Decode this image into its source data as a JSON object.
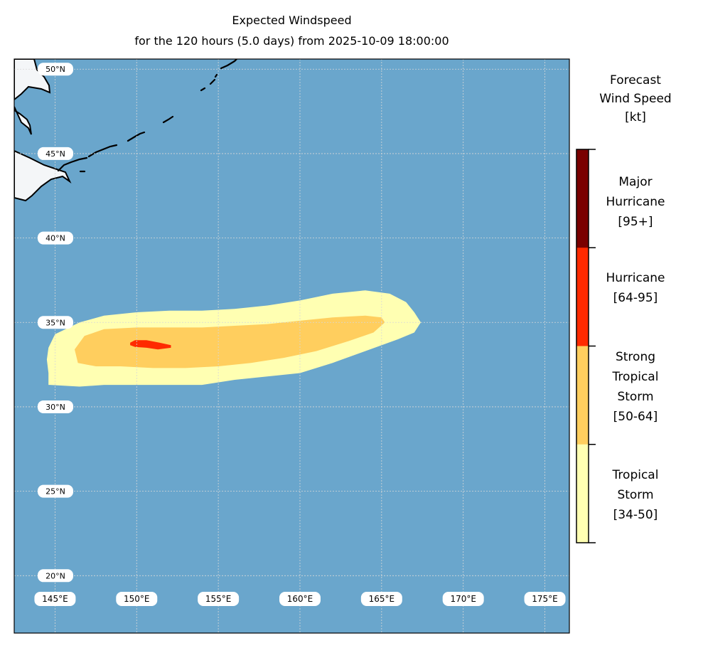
{
  "chart": {
    "title": "Expected Windspeed",
    "subtitle": "for the 120 hours (5.0 days) from 2025-10-09 18:00:00"
  },
  "map": {
    "extent": {
      "lon": [
        142.5,
        176.5
      ],
      "lat": [
        16.6,
        50.6
      ]
    },
    "lon_ticks": [
      145,
      150,
      155,
      160,
      165,
      170,
      175
    ],
    "lat_ticks": [
      20,
      25,
      30,
      35,
      40,
      45,
      50
    ],
    "lon_tick_labels": [
      "145°E",
      "150°E",
      "155°E",
      "160°E",
      "165°E",
      "170°E",
      "175°E"
    ],
    "lat_tick_labels": [
      "20°N",
      "25°N",
      "30°N",
      "35°N",
      "40°N",
      "45°N",
      "50°N"
    ],
    "ocean_color": "#6aa6cc",
    "land_color": "#f4f6f8",
    "gridlines": true
  },
  "colorbar": {
    "title_lines": [
      "Forecast",
      "Wind Speed",
      "[kt]"
    ],
    "categories": [
      {
        "lines": [
          "Major",
          "Hurricane",
          "[95+]"
        ],
        "color": "#7a0000"
      },
      {
        "lines": [
          "Hurricane",
          "[64-95]"
        ],
        "color": "#ff2a00"
      },
      {
        "lines": [
          "Strong",
          "Tropical",
          "Storm",
          "[50-64]"
        ],
        "color": "#ffce5e"
      },
      {
        "lines": [
          "Tropical",
          "Storm",
          "[34-50]"
        ],
        "color": "#ffffb2"
      }
    ]
  },
  "swaths": [
    {
      "category": "Tropical Storm [34-50]",
      "color": "#ffffb2",
      "outline": [
        [
          144.6,
          31.3
        ],
        [
          144.7,
          31.3
        ],
        [
          146.5,
          31.2
        ],
        [
          148.0,
          31.3
        ],
        [
          150.0,
          31.3
        ],
        [
          152.0,
          31.3
        ],
        [
          154.0,
          31.3
        ],
        [
          156.0,
          31.6
        ],
        [
          158.0,
          31.8
        ],
        [
          160.0,
          32.0
        ],
        [
          162.0,
          32.6
        ],
        [
          164.0,
          33.3
        ],
        [
          166.0,
          34.0
        ],
        [
          167.0,
          34.4
        ],
        [
          167.4,
          35.0
        ],
        [
          167.0,
          35.6
        ],
        [
          166.5,
          36.2
        ],
        [
          165.5,
          36.7
        ],
        [
          164.0,
          36.9
        ],
        [
          162.0,
          36.7
        ],
        [
          160.0,
          36.3
        ],
        [
          158.0,
          36.0
        ],
        [
          156.0,
          35.8
        ],
        [
          154.0,
          35.7
        ],
        [
          152.0,
          35.7
        ],
        [
          150.0,
          35.6
        ],
        [
          148.0,
          35.4
        ],
        [
          146.5,
          35.0
        ],
        [
          145.0,
          34.3
        ],
        [
          144.6,
          33.5
        ],
        [
          144.5,
          32.8
        ],
        [
          144.6,
          32.0
        ]
      ]
    },
    {
      "category": "Strong Tropical Storm [50-64]",
      "color": "#ffce5e",
      "outline": [
        [
          146.4,
          32.6
        ],
        [
          147.5,
          32.4
        ],
        [
          149.0,
          32.4
        ],
        [
          151.0,
          32.3
        ],
        [
          153.0,
          32.3
        ],
        [
          155.0,
          32.4
        ],
        [
          157.0,
          32.6
        ],
        [
          159.0,
          32.9
        ],
        [
          161.0,
          33.3
        ],
        [
          163.0,
          33.9
        ],
        [
          164.5,
          34.4
        ],
        [
          165.2,
          35.0
        ],
        [
          165.0,
          35.3
        ],
        [
          164.0,
          35.4
        ],
        [
          162.0,
          35.3
        ],
        [
          160.0,
          35.1
        ],
        [
          158.0,
          34.9
        ],
        [
          156.0,
          34.8
        ],
        [
          154.0,
          34.7
        ],
        [
          152.0,
          34.7
        ],
        [
          150.0,
          34.7
        ],
        [
          148.0,
          34.6
        ],
        [
          146.8,
          34.2
        ],
        [
          146.2,
          33.4
        ]
      ]
    },
    {
      "category": "Hurricane [64-95]",
      "color": "#ff2a00",
      "outline": [
        [
          149.6,
          33.8
        ],
        [
          149.9,
          33.95
        ],
        [
          150.6,
          33.95
        ],
        [
          151.4,
          33.8
        ],
        [
          152.1,
          33.65
        ],
        [
          152.1,
          33.5
        ],
        [
          151.3,
          33.4
        ],
        [
          150.6,
          33.5
        ],
        [
          149.9,
          33.55
        ],
        [
          149.6,
          33.65
        ]
      ]
    }
  ]
}
